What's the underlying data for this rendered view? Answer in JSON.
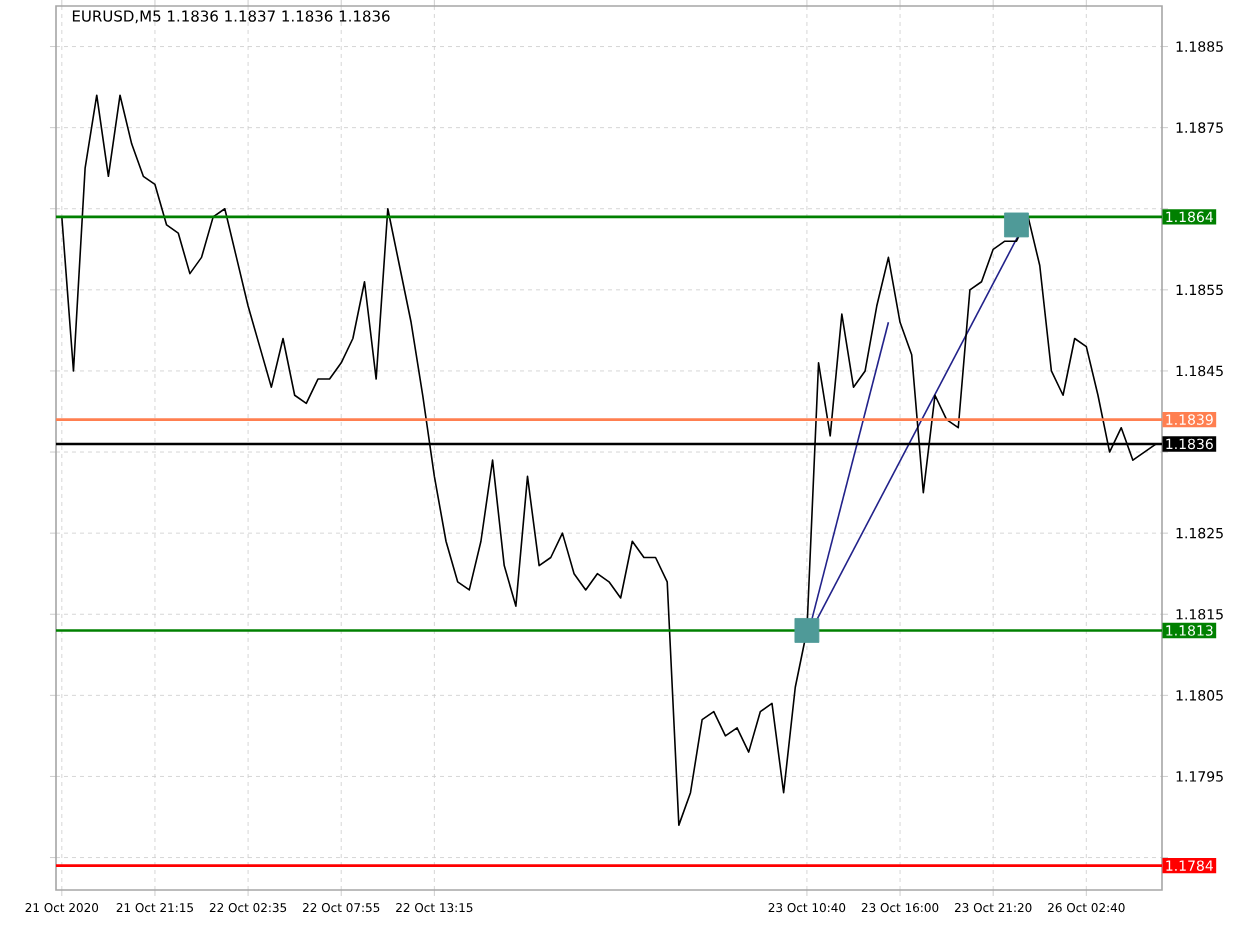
{
  "chart_data": {
    "type": "line",
    "title": "EURUSD,M5  1.1836 1.1837 1.1836 1.1836",
    "categories": [
      "21 Oct 2020",
      null,
      null,
      null,
      null,
      null,
      null,
      null,
      "21 Oct 21:15",
      null,
      null,
      null,
      null,
      null,
      null,
      null,
      "22 Oct 02:35",
      null,
      null,
      null,
      null,
      null,
      null,
      null,
      "22 Oct 07:55",
      null,
      null,
      null,
      null,
      null,
      null,
      null,
      "22 Oct 13:15",
      null,
      null,
      null,
      null,
      null,
      null,
      null,
      null,
      null,
      null,
      null,
      null,
      null,
      null,
      null,
      null,
      null,
      null,
      null,
      null,
      null,
      null,
      null,
      null,
      null,
      null,
      null,
      null,
      null,
      null,
      null,
      "23 Oct 10:40",
      null,
      null,
      null,
      null,
      null,
      null,
      null,
      "23 Oct 16:00",
      null,
      null,
      null,
      null,
      null,
      null,
      null,
      "23 Oct 21:20",
      null,
      null,
      null,
      null,
      null,
      null,
      null,
      "26 Oct 02:40",
      null,
      null,
      null,
      null,
      null,
      null
    ],
    "ylim": [
      1.1781,
      1.189
    ],
    "yticks": [
      {
        "value": 1.1785,
        "label": null
      },
      1.1795,
      1.1805,
      1.1815,
      1.1825,
      {
        "value": 1.1835,
        "label": null
      },
      1.1845,
      1.1855,
      {
        "value": 1.1865,
        "label": null
      },
      1.1875,
      1.1885
    ],
    "grid": true,
    "series": [
      {
        "type": "scatter",
        "marker": "square",
        "color": "#4f9a98",
        "values": [
          null,
          null,
          null,
          null,
          null,
          null,
          null,
          null,
          null,
          null,
          null,
          null,
          null,
          null,
          null,
          null,
          null,
          null,
          null,
          null,
          null,
          null,
          null,
          null,
          null,
          null,
          null,
          null,
          null,
          null,
          null,
          null,
          null,
          null,
          null,
          null,
          null,
          null,
          null,
          null,
          null,
          null,
          null,
          null,
          null,
          null,
          null,
          null,
          null,
          null,
          null,
          null,
          null,
          null,
          null,
          null,
          null,
          null,
          null,
          null,
          null,
          null,
          null,
          null,
          1.1813,
          null,
          null,
          null,
          null,
          null,
          null,
          null,
          null,
          null,
          null,
          null,
          null,
          null,
          null,
          null,
          null,
          null,
          1.1863,
          null,
          null,
          null,
          null,
          null,
          null,
          null,
          null,
          null,
          null,
          null,
          null
        ]
      },
      {
        "color": "#000000",
        "values": [
          1.1864,
          1.1845,
          1.187,
          1.1879,
          1.1869,
          1.1879,
          1.1873,
          1.1869,
          1.1868,
          1.1863,
          1.1862,
          1.1857,
          1.1859,
          1.1864,
          1.1865,
          1.1859,
          1.1853,
          1.1848,
          1.1843,
          1.1849,
          1.1842,
          1.1841,
          1.1844,
          1.1844,
          1.1846,
          1.1849,
          1.1856,
          1.1844,
          1.1865,
          1.1858,
          1.1851,
          1.1842,
          1.1832,
          1.1824,
          1.1819,
          1.1818,
          1.1824,
          1.1834,
          1.1821,
          1.1816,
          1.1832,
          1.1821,
          1.1822,
          1.1825,
          1.182,
          1.1818,
          1.182,
          1.1819,
          1.1817,
          1.1824,
          1.1822,
          1.1822,
          1.1819,
          1.1789,
          1.1793,
          1.1802,
          1.1803,
          1.18,
          1.1801,
          1.1798,
          1.1803,
          1.1804,
          1.1793,
          1.1806,
          1.1813,
          1.1846,
          1.1837,
          1.1852,
          1.1843,
          1.1845,
          1.1853,
          1.1859,
          1.1851,
          1.1847,
          1.183,
          1.1842,
          1.1839,
          1.1838,
          1.1855,
          1.1856,
          1.186,
          1.1861,
          1.1861,
          1.1864,
          1.1858,
          1.1845,
          1.1842,
          1.1849,
          1.1848,
          1.1842,
          1.1835,
          1.1838,
          1.1834,
          1.1835,
          1.1836
        ]
      },
      {
        "color": "#22228a",
        "values": [
          null,
          null,
          null,
          null,
          null,
          null,
          null,
          null,
          null,
          null,
          null,
          null,
          null,
          null,
          null,
          null,
          null,
          null,
          null,
          null,
          null,
          null,
          null,
          null,
          null,
          null,
          null,
          null,
          null,
          null,
          null,
          null,
          null,
          null,
          null,
          null,
          null,
          null,
          null,
          null,
          null,
          null,
          null,
          null,
          null,
          null,
          null,
          null,
          null,
          null,
          null,
          null,
          null,
          null,
          null,
          null,
          null,
          null,
          null,
          null,
          null,
          null,
          null,
          null,
          1.1812,
          null,
          null,
          null,
          null,
          null,
          null,
          1.1851,
          null,
          null,
          null,
          null,
          null,
          null,
          null,
          null,
          null,
          null,
          null,
          null,
          null,
          null,
          null,
          null,
          null,
          null,
          null,
          null,
          null,
          null,
          null
        ]
      },
      {
        "color": "#22228a",
        "values": [
          null,
          null,
          null,
          null,
          null,
          null,
          null,
          null,
          null,
          null,
          null,
          null,
          null,
          null,
          null,
          null,
          null,
          null,
          null,
          null,
          null,
          null,
          null,
          null,
          null,
          null,
          null,
          null,
          null,
          null,
          null,
          null,
          null,
          null,
          null,
          null,
          null,
          null,
          null,
          null,
          null,
          null,
          null,
          null,
          null,
          null,
          null,
          null,
          null,
          null,
          null,
          null,
          null,
          null,
          null,
          null,
          null,
          null,
          null,
          null,
          null,
          null,
          null,
          null,
          1.1812,
          null,
          null,
          null,
          null,
          null,
          null,
          null,
          null,
          null,
          null,
          null,
          null,
          null,
          null,
          null,
          null,
          null,
          null,
          1.1864,
          null,
          null,
          null,
          null,
          null,
          null,
          null,
          null,
          null,
          null,
          null
        ]
      }
    ],
    "ref_lines": [
      {
        "axis": "y",
        "value": 1.1864,
        "label": "1.1864",
        "color": "#008000"
      },
      {
        "axis": "y",
        "value": 1.1839,
        "label": "1.1839",
        "color": "#ff7f50"
      },
      {
        "axis": "y",
        "value": 1.1836,
        "label": "1.1836",
        "color": "#000000"
      },
      {
        "axis": "y",
        "value": 1.1813,
        "label": "1.1813",
        "color": "#008000"
      },
      {
        "axis": "y",
        "value": 1.1784,
        "label": "1.1784",
        "color": "#ff0000"
      }
    ]
  }
}
